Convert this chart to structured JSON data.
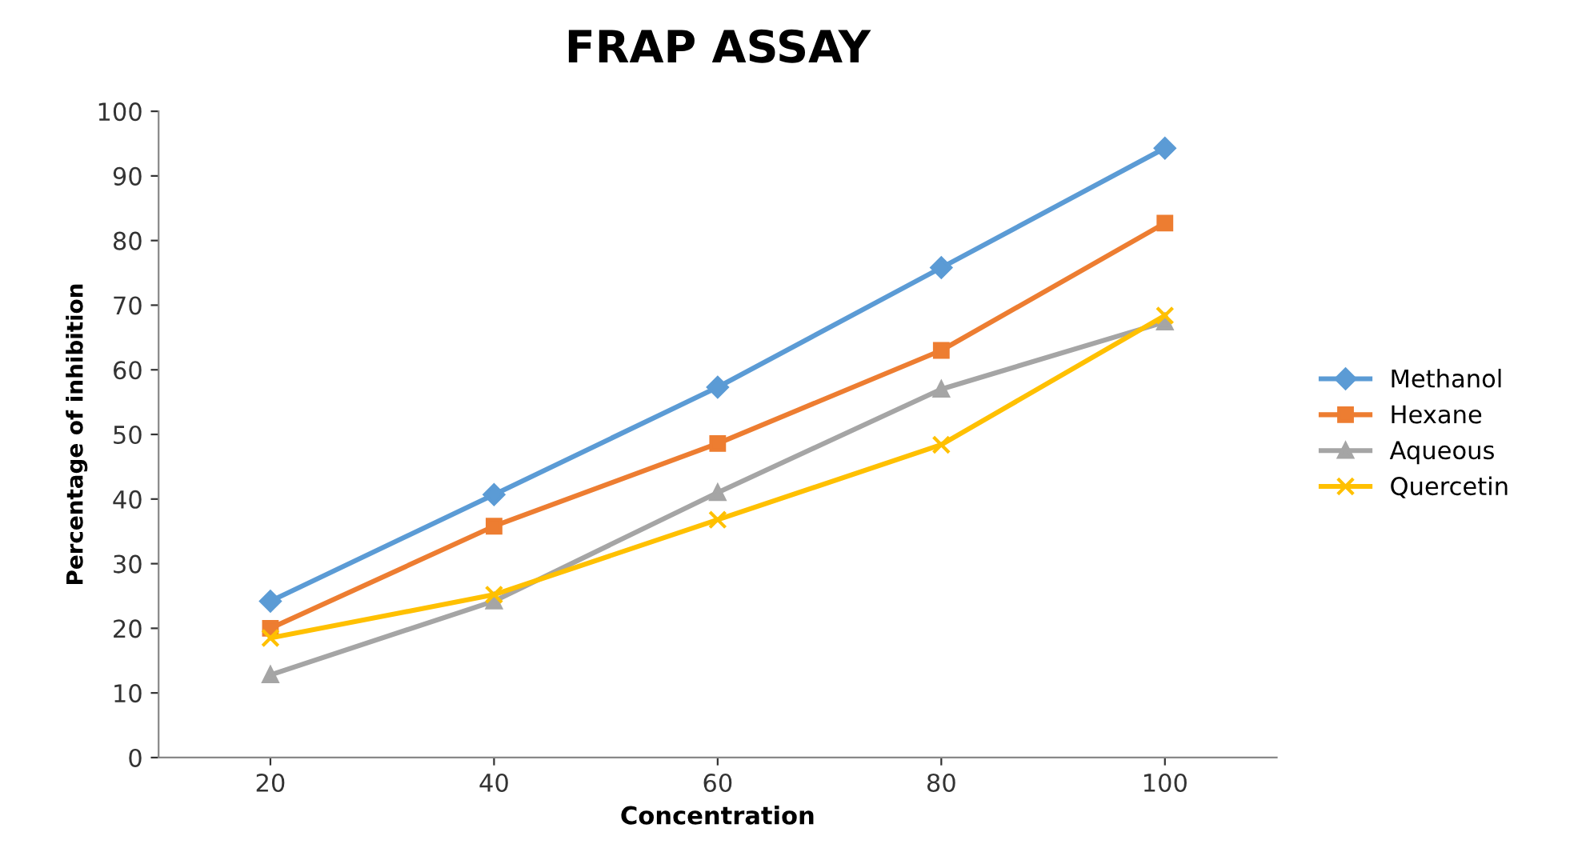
{
  "chart_data": {
    "type": "line",
    "title": "FRAP ASSAY",
    "xlabel": "Concentration",
    "ylabel": "Percentage of inhibition",
    "categories": [
      "20",
      "40",
      "60",
      "80",
      "100"
    ],
    "series": [
      {
        "name": "Methanol",
        "color": "#5b9bd5",
        "marker": "diamond",
        "values": [
          24.2,
          40.7,
          57.3,
          75.8,
          94.3
        ]
      },
      {
        "name": "Hexane",
        "color": "#ed7d31",
        "marker": "square",
        "values": [
          20,
          35.8,
          48.6,
          63,
          82.7
        ]
      },
      {
        "name": "Aqueous",
        "color": "#a5a5a5",
        "marker": "triangle",
        "values": [
          12.8,
          24.2,
          41,
          57,
          67.4
        ]
      },
      {
        "name": "Quercetin",
        "color": "#ffc000",
        "marker": "cross",
        "values": [
          18.5,
          25.2,
          36.8,
          48.4,
          68.4
        ]
      }
    ],
    "ylim": [
      0,
      100
    ],
    "yticks": [
      0,
      10,
      20,
      30,
      40,
      50,
      60,
      70,
      80,
      90,
      100
    ],
    "grid": false,
    "legend": "right",
    "line_style": "solid"
  }
}
